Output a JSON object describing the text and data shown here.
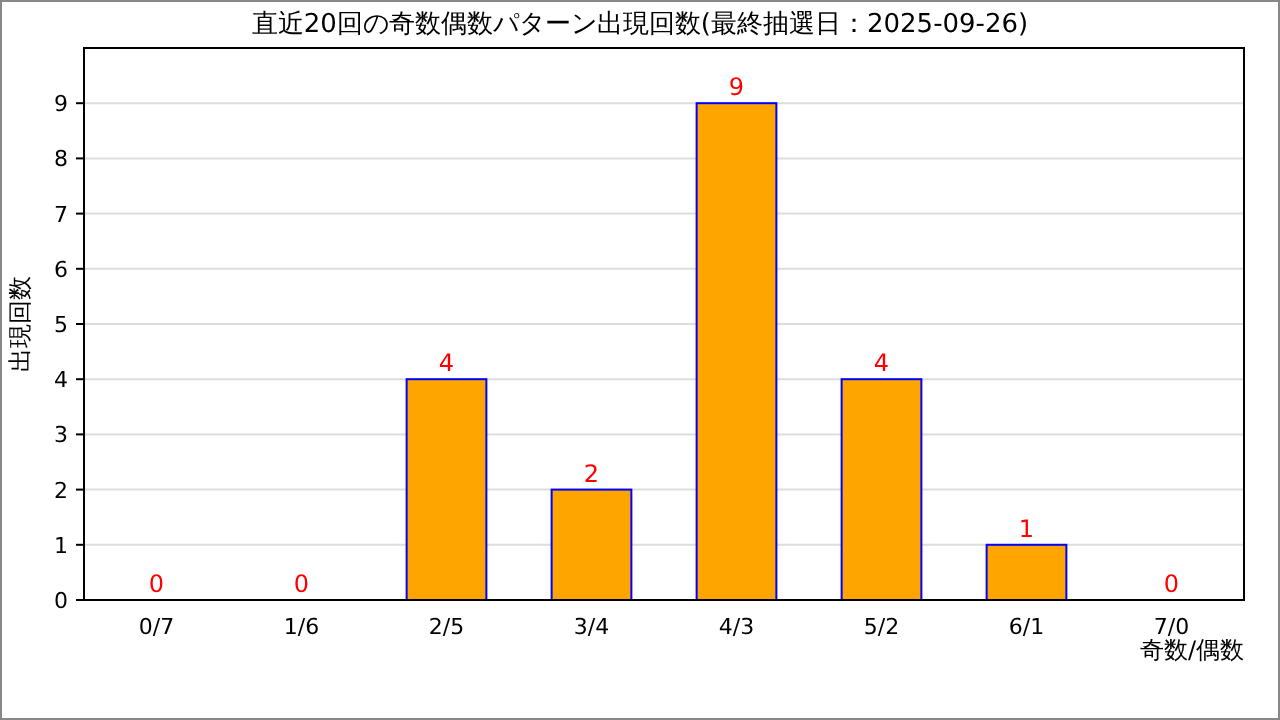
{
  "chart_data": {
    "type": "bar",
    "title": "直近20回の奇数偶数パターン出現回数(最終抽選日：2025-09-26)",
    "xlabel": "奇数/偶数",
    "ylabel": "出現回数",
    "categories": [
      "0/7",
      "1/6",
      "2/5",
      "3/4",
      "4/3",
      "5/2",
      "6/1",
      "7/0"
    ],
    "values": [
      0,
      0,
      4,
      2,
      9,
      4,
      1,
      0
    ],
    "color": "#ffa500",
    "ylim": [
      0,
      10
    ],
    "yticks": [
      0,
      1,
      2,
      3,
      4,
      5,
      6,
      7,
      8,
      9
    ],
    "grid": "y",
    "data_labels": true
  }
}
